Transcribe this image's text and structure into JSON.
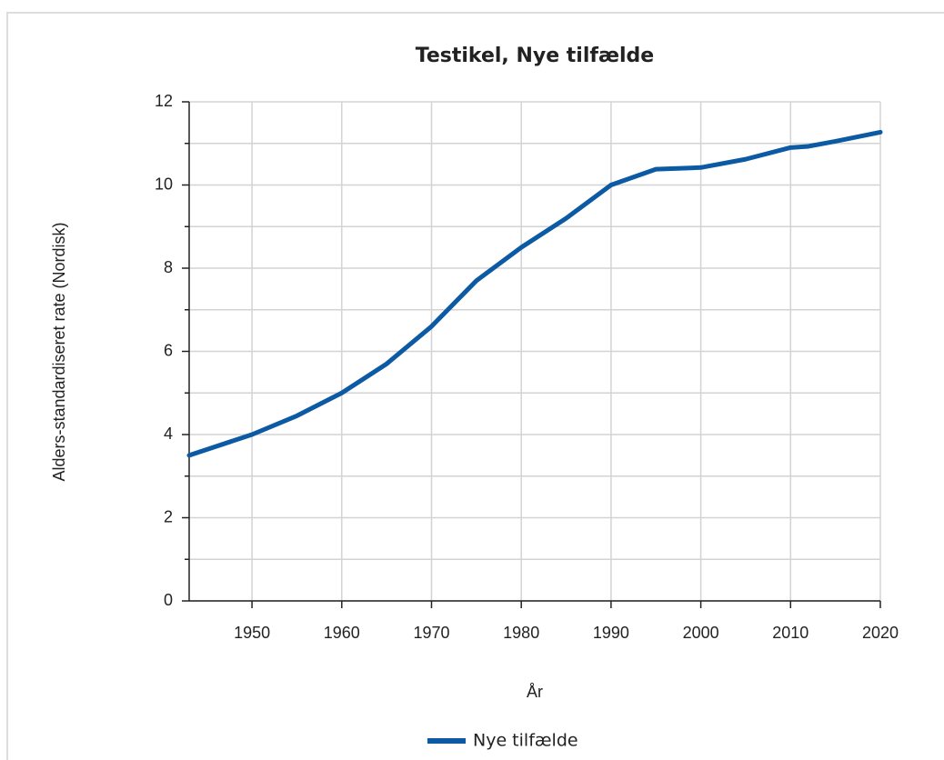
{
  "chart_data": {
    "type": "line",
    "title": "Testikel, Nye tilfælde",
    "xlabel": "År",
    "ylabel": "Alders-standardiseret rate (Nordisk)",
    "x": [
      1943,
      1950,
      1955,
      1960,
      1965,
      1970,
      1975,
      1980,
      1985,
      1990,
      1995,
      2000,
      2005,
      2010,
      2012,
      2015,
      2020
    ],
    "series": [
      {
        "name": "Nye tilfælde",
        "color": "#0b5aa3",
        "values": [
          3.5,
          4.0,
          4.45,
          5.0,
          5.7,
          6.6,
          7.7,
          8.5,
          9.2,
          10.0,
          10.38,
          10.42,
          10.62,
          10.9,
          10.93,
          11.05,
          11.27
        ]
      }
    ],
    "xlim": [
      1943,
      2020
    ],
    "xticks": [
      1950,
      1960,
      1970,
      1980,
      1990,
      2000,
      2010,
      2020
    ],
    "ylim": [
      0,
      12
    ],
    "yticks": [
      0,
      2,
      4,
      6,
      8,
      10,
      12
    ],
    "yminorticks": [
      1,
      3,
      5,
      7,
      9,
      11
    ],
    "grid": true,
    "legend": "bottom"
  }
}
